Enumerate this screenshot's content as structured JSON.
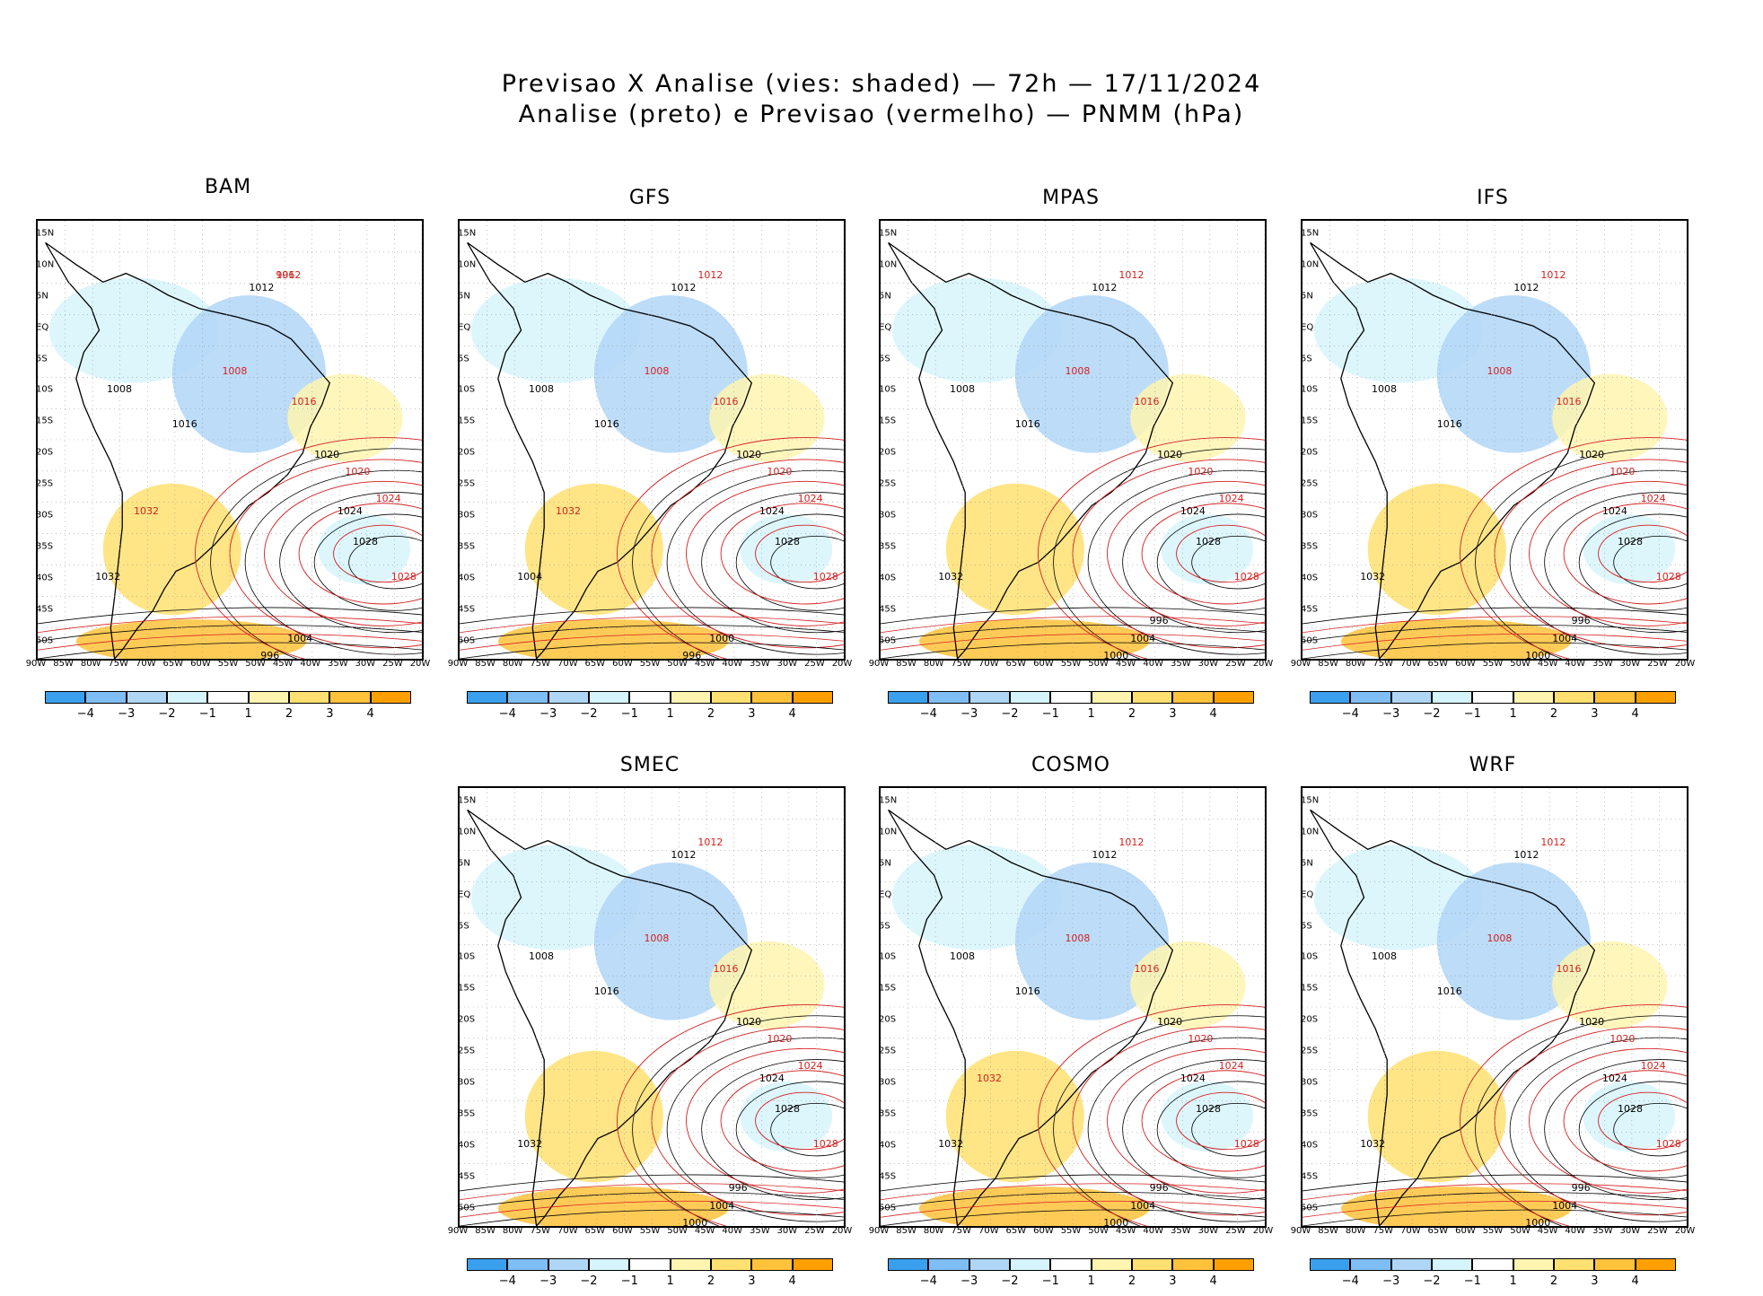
{
  "title": {
    "line1": "Previsao X Analise (vies: shaded) — 72h — 17/11/2024",
    "line2": "Analise (preto) e Previsao (vermelho) — PNMM (hPa)"
  },
  "lat_labels": [
    "15N",
    "10N",
    "5N",
    "EQ",
    "5S",
    "10S",
    "15S",
    "20S",
    "25S",
    "30S",
    "35S",
    "40S",
    "45S",
    "50S"
  ],
  "lon_labels": [
    "90W",
    "85W",
    "80W",
    "75W",
    "70W",
    "65W",
    "60W",
    "55W",
    "50W",
    "45W",
    "40W",
    "35W",
    "30W",
    "25W",
    "20W"
  ],
  "colorbar": {
    "labels": [
      "−4",
      "−3",
      "−2",
      "−1",
      "1",
      "2",
      "3",
      "4"
    ],
    "colors": [
      "#3aa0ee",
      "#7fbdf5",
      "#b0d6f7",
      "#d6f4fb",
      "#ffffff",
      "#fff5b0",
      "#ffe070",
      "#ffc23a",
      "#ffa000"
    ]
  },
  "panels": [
    {
      "name": "BAM",
      "contours_black": [
        "1012",
        "1008",
        "1016",
        "1020",
        "1024",
        "1028",
        "1032",
        "1004",
        "996"
      ],
      "contours_red": [
        "1012",
        "1008",
        "1016",
        "1020",
        "1024",
        "1028",
        "1032",
        "996"
      ]
    },
    {
      "name": "GFS",
      "contours_black": [
        "1012",
        "1008",
        "1016",
        "1020",
        "1024",
        "1028",
        "1004",
        "1000",
        "996"
      ],
      "contours_red": [
        "1012",
        "1008",
        "1016",
        "1020",
        "1024",
        "1028",
        "1032"
      ]
    },
    {
      "name": "MPAS",
      "contours_black": [
        "1012",
        "1008",
        "1016",
        "1020",
        "1024",
        "1028",
        "1032",
        "1004",
        "1000",
        "996"
      ],
      "contours_red": [
        "1012",
        "1008",
        "1016",
        "1020",
        "1024",
        "1028"
      ]
    },
    {
      "name": "IFS",
      "contours_black": [
        "1012",
        "1008",
        "1016",
        "1020",
        "1024",
        "1028",
        "1032",
        "1004",
        "1000",
        "996"
      ],
      "contours_red": [
        "1012",
        "1008",
        "1016",
        "1020",
        "1024",
        "1028"
      ]
    },
    {
      "name": "SMEC",
      "contours_black": [
        "1012",
        "1008",
        "1016",
        "1020",
        "1024",
        "1028",
        "1032",
        "1004",
        "1000",
        "996"
      ],
      "contours_red": [
        "1012",
        "1008",
        "1016",
        "1020",
        "1024",
        "1028"
      ]
    },
    {
      "name": "COSMO",
      "contours_black": [
        "1012",
        "1008",
        "1016",
        "1020",
        "1024",
        "1028",
        "1032",
        "1004",
        "1000",
        "996"
      ],
      "contours_red": [
        "1012",
        "1008",
        "1016",
        "1020",
        "1024",
        "1028",
        "1032"
      ]
    },
    {
      "name": "WRF",
      "contours_black": [
        "1012",
        "1008",
        "1016",
        "1020",
        "1024",
        "1028",
        "1032",
        "1004",
        "1000",
        "996"
      ],
      "contours_red": [
        "1012",
        "1008",
        "1016",
        "1020",
        "1024",
        "1028"
      ]
    }
  ]
}
